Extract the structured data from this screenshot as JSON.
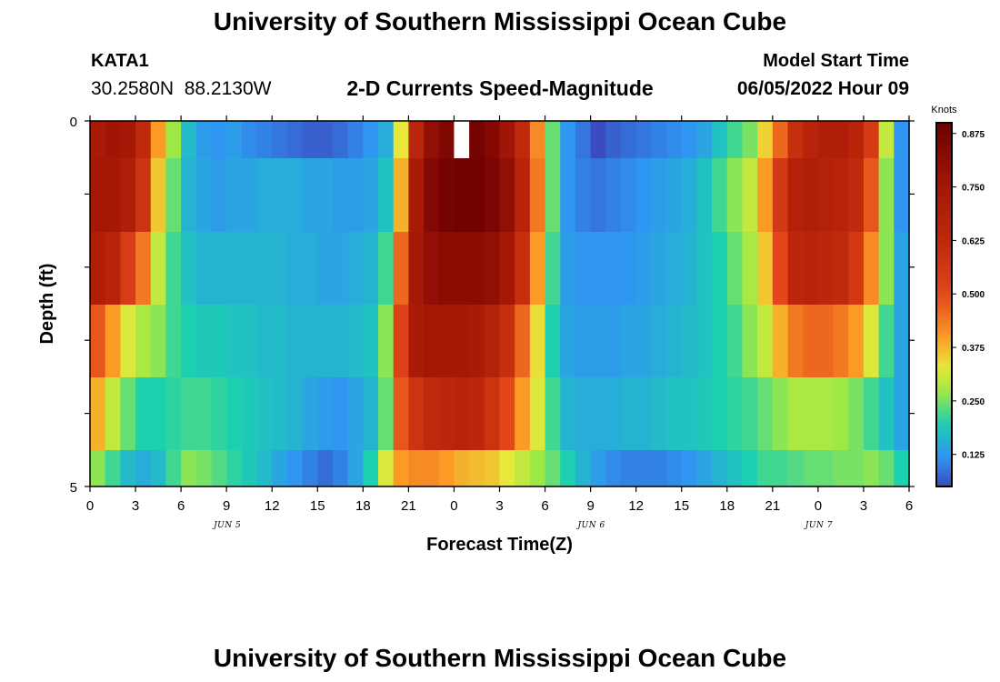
{
  "header": {
    "title": "University of Southern Mississippi Ocean Cube",
    "station": "KATA1",
    "coordinates": "30.2580N  88.2130W",
    "variable_title": "2-D Currents Speed-Magnitude",
    "start_label": "Model Start Time",
    "start_value": "06/05/2022 Hour 09"
  },
  "footer": {
    "title": "University of Southern Mississippi Ocean Cube"
  },
  "chart_data": {
    "type": "heatmap",
    "title": "2-D Currents Speed-Magnitude",
    "xlabel": "Forecast Time(Z)",
    "ylabel": "Depth (ft)",
    "x_tick_labels": [
      "0",
      "3",
      "6",
      "9",
      "12",
      "15",
      "18",
      "21",
      "0",
      "3",
      "6",
      "9",
      "12",
      "15",
      "18",
      "21",
      "0",
      "3",
      "6"
    ],
    "date_labels": [
      {
        "label": "JUN 5",
        "at_index": 3
      },
      {
        "label": "JUN 6",
        "at_index": 11
      },
      {
        "label": "JUN 7",
        "at_index": 16
      }
    ],
    "y_tick_labels": [
      "0",
      "5"
    ],
    "ylim": [
      0,
      5
    ],
    "y_minor_ticks": 4,
    "hours": 54,
    "rows": [
      [
        0.72,
        0.76,
        0.74,
        0.62,
        0.4,
        0.27,
        0.17,
        0.13,
        0.12,
        0.13,
        0.11,
        0.1,
        0.09,
        0.08,
        0.07,
        0.07,
        0.08,
        0.1,
        0.12,
        0.15,
        0.33,
        0.65,
        0.8,
        0.85,
        null,
        0.88,
        0.84,
        0.76,
        0.62,
        0.42,
        0.24,
        0.12,
        0.09,
        0.05,
        0.07,
        0.08,
        0.09,
        0.1,
        0.11,
        0.12,
        0.14,
        0.18,
        0.22,
        0.25,
        0.35,
        0.46,
        0.6,
        0.66,
        0.7,
        0.7,
        0.66,
        0.55,
        0.3,
        0.12
      ],
      [
        0.74,
        0.74,
        0.7,
        0.58,
        0.36,
        0.24,
        0.16,
        0.14,
        0.13,
        0.14,
        0.14,
        0.15,
        0.15,
        0.15,
        0.14,
        0.14,
        0.13,
        0.13,
        0.14,
        0.18,
        0.38,
        0.72,
        0.84,
        0.88,
        0.89,
        0.89,
        0.86,
        0.8,
        0.66,
        0.44,
        0.24,
        0.12,
        0.1,
        0.09,
        0.1,
        0.11,
        0.12,
        0.13,
        0.14,
        0.15,
        0.18,
        0.22,
        0.26,
        0.3,
        0.4,
        0.56,
        0.68,
        0.7,
        0.68,
        0.66,
        0.62,
        0.48,
        0.26,
        0.12
      ],
      [
        0.7,
        0.66,
        0.54,
        0.44,
        0.3,
        0.22,
        0.18,
        0.16,
        0.16,
        0.16,
        0.16,
        0.16,
        0.16,
        0.15,
        0.15,
        0.14,
        0.14,
        0.15,
        0.16,
        0.22,
        0.46,
        0.74,
        0.8,
        0.82,
        0.82,
        0.82,
        0.8,
        0.74,
        0.6,
        0.4,
        0.22,
        0.13,
        0.12,
        0.12,
        0.12,
        0.12,
        0.13,
        0.14,
        0.15,
        0.16,
        0.18,
        0.2,
        0.24,
        0.28,
        0.36,
        0.5,
        0.64,
        0.66,
        0.64,
        0.62,
        0.56,
        0.42,
        0.26,
        0.14
      ],
      [
        0.48,
        0.4,
        0.32,
        0.28,
        0.26,
        0.22,
        0.2,
        0.19,
        0.19,
        0.18,
        0.18,
        0.17,
        0.17,
        0.16,
        0.16,
        0.16,
        0.16,
        0.17,
        0.18,
        0.26,
        0.52,
        0.72,
        0.74,
        0.74,
        0.74,
        0.72,
        0.68,
        0.6,
        0.46,
        0.34,
        0.2,
        0.14,
        0.13,
        0.13,
        0.13,
        0.14,
        0.14,
        0.15,
        0.16,
        0.17,
        0.18,
        0.2,
        0.22,
        0.26,
        0.3,
        0.38,
        0.44,
        0.46,
        0.46,
        0.44,
        0.4,
        0.32,
        0.22,
        0.14
      ],
      [
        0.38,
        0.3,
        0.24,
        0.2,
        0.2,
        0.21,
        0.22,
        0.22,
        0.21,
        0.2,
        0.19,
        0.18,
        0.17,
        0.16,
        0.14,
        0.13,
        0.12,
        0.14,
        0.16,
        0.24,
        0.48,
        0.58,
        0.62,
        0.64,
        0.66,
        0.64,
        0.58,
        0.5,
        0.4,
        0.32,
        0.22,
        0.16,
        0.15,
        0.15,
        0.15,
        0.16,
        0.16,
        0.17,
        0.18,
        0.18,
        0.19,
        0.2,
        0.21,
        0.22,
        0.24,
        0.26,
        0.28,
        0.28,
        0.28,
        0.27,
        0.25,
        0.22,
        0.18,
        0.14
      ],
      [
        0.26,
        0.22,
        0.17,
        0.15,
        0.17,
        0.22,
        0.26,
        0.25,
        0.23,
        0.21,
        0.19,
        0.17,
        0.14,
        0.12,
        0.1,
        0.08,
        0.1,
        0.14,
        0.2,
        0.32,
        0.4,
        0.42,
        0.42,
        0.4,
        0.38,
        0.37,
        0.36,
        0.33,
        0.3,
        0.27,
        0.24,
        0.2,
        0.16,
        0.13,
        0.11,
        0.1,
        0.1,
        0.1,
        0.11,
        0.12,
        0.14,
        0.16,
        0.18,
        0.2,
        0.22,
        0.22,
        0.23,
        0.24,
        0.24,
        0.25,
        0.25,
        0.26,
        0.24,
        0.2
      ]
    ],
    "missing_color": "#ffffff",
    "colorbar": {
      "unit": "Knots",
      "range": [
        0.05,
        0.9
      ],
      "tick_labels": [
        "0.875",
        "0.750",
        "0.625",
        "0.500",
        "0.375",
        "0.250",
        "0.125"
      ],
      "tick_values": [
        0.875,
        0.75,
        0.625,
        0.5,
        0.375,
        0.25,
        0.125
      ]
    },
    "colormap": [
      {
        "v": 0.05,
        "c": "#3b4cc0"
      },
      {
        "v": 0.12,
        "c": "#2f96f2"
      },
      {
        "v": 0.2,
        "c": "#1cd0b0"
      },
      {
        "v": 0.27,
        "c": "#9ee846"
      },
      {
        "v": 0.33,
        "c": "#e8e83a"
      },
      {
        "v": 0.4,
        "c": "#fb9b26"
      },
      {
        "v": 0.5,
        "c": "#e2461a"
      },
      {
        "v": 0.62,
        "c": "#c02a0c"
      },
      {
        "v": 0.75,
        "c": "#a31706"
      },
      {
        "v": 0.9,
        "c": "#6e0000"
      }
    ]
  }
}
